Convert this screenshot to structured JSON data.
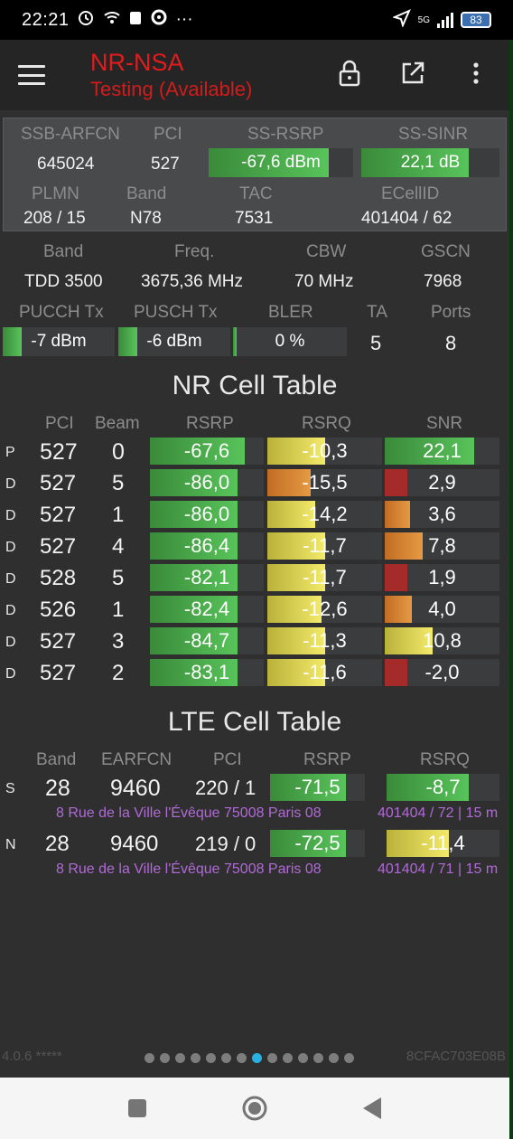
{
  "status_bar": {
    "time": "22:21",
    "network": "5G",
    "battery": "83"
  },
  "toolbar": {
    "title": "NR-NSA",
    "subtitle": "Testing (Available)"
  },
  "nr_box": {
    "labels": [
      "SSB-ARFCN",
      "PCI",
      "SS-RSRP",
      "SS-SINR"
    ],
    "arfcn": "645024",
    "pci": "527",
    "ss_rsrp": "-67,6 dBm",
    "ss_rsrp_fill": 0.83,
    "ss_sinr": "22,1 dB",
    "ss_sinr_fill": 0.78,
    "labels2": [
      "PLMN",
      "Band",
      "TAC",
      "ECellID"
    ],
    "plmn": "208 / 15",
    "band": "N78",
    "tac": "7531",
    "ecellid": "401404 / 62"
  },
  "carrier": {
    "labels": [
      "Band",
      "Freq.",
      "CBW",
      "GSCN"
    ],
    "band": "TDD 3500",
    "freq": "3675,36 MHz",
    "cbw": "70 MHz",
    "gscn": "7968",
    "labels2": [
      "PUCCH Tx",
      "PUSCH Tx",
      "BLER",
      "TA",
      "Ports"
    ],
    "pucch": "-7 dBm",
    "pucch_fill": 0.17,
    "pusch": "-6 dBm",
    "pusch_fill": 0.17,
    "bler": "0 %",
    "bler_fill": 0.03,
    "ta": "5",
    "ports": "8"
  },
  "nr_table": {
    "title": "NR Cell Table",
    "headers": [
      "PCI",
      "Beam",
      "RSRP",
      "RSRQ",
      "SNR"
    ],
    "rows": [
      {
        "type": "P",
        "pci": "527",
        "beam": "0",
        "rsrp": "-67,6",
        "rsrp_fill": 0.83,
        "rsrq": "-10,3",
        "rsrq_fill": 0.5,
        "rsrq_color": "yellow",
        "snr": "22,1",
        "snr_fill": 0.78,
        "snr_color": "green"
      },
      {
        "type": "D",
        "pci": "527",
        "beam": "5",
        "rsrp": "-86,0",
        "rsrp_fill": 0.77,
        "rsrq": "-15,5",
        "rsrq_fill": 0.38,
        "rsrq_color": "orange",
        "snr": "2,9",
        "snr_fill": 0.2,
        "snr_color": "red"
      },
      {
        "type": "D",
        "pci": "527",
        "beam": "1",
        "rsrp": "-86,0",
        "rsrp_fill": 0.77,
        "rsrq": "-14,2",
        "rsrq_fill": 0.42,
        "rsrq_color": "yellow",
        "snr": "3,6",
        "snr_fill": 0.22,
        "snr_color": "orange"
      },
      {
        "type": "D",
        "pci": "527",
        "beam": "4",
        "rsrp": "-86,4",
        "rsrp_fill": 0.77,
        "rsrq": "-11,7",
        "rsrq_fill": 0.5,
        "rsrq_color": "yellow",
        "snr": "7,8",
        "snr_fill": 0.33,
        "snr_color": "orange"
      },
      {
        "type": "D",
        "pci": "528",
        "beam": "5",
        "rsrp": "-82,1",
        "rsrp_fill": 0.77,
        "rsrq": "-11,7",
        "rsrq_fill": 0.5,
        "rsrq_color": "yellow",
        "snr": "1,9",
        "snr_fill": 0.2,
        "snr_color": "red"
      },
      {
        "type": "D",
        "pci": "526",
        "beam": "1",
        "rsrp": "-82,4",
        "rsrp_fill": 0.77,
        "rsrq": "-12,6",
        "rsrq_fill": 0.47,
        "rsrq_color": "yellow",
        "snr": "4,0",
        "snr_fill": 0.24,
        "snr_color": "orange"
      },
      {
        "type": "D",
        "pci": "527",
        "beam": "3",
        "rsrp": "-84,7",
        "rsrp_fill": 0.77,
        "rsrq": "-11,3",
        "rsrq_fill": 0.5,
        "rsrq_color": "yellow",
        "snr": "10,8",
        "snr_fill": 0.42,
        "snr_color": "yellow"
      },
      {
        "type": "D",
        "pci": "527",
        "beam": "2",
        "rsrp": "-83,1",
        "rsrp_fill": 0.77,
        "rsrq": "-11,6",
        "rsrq_fill": 0.5,
        "rsrq_color": "yellow",
        "snr": "-2,0",
        "snr_fill": 0.2,
        "snr_color": "red"
      }
    ]
  },
  "lte_table": {
    "title": "LTE Cell Table",
    "headers": [
      "Band",
      "EARFCN",
      "PCI",
      "RSRP",
      "RSRQ"
    ],
    "rows": [
      {
        "type": "S",
        "band": "28",
        "earfcn": "9460",
        "pci": "220 / 1",
        "rsrp": "-71,5",
        "rsrp_fill": 0.8,
        "rsrq": "-8,7",
        "rsrq_fill": 0.73,
        "rsrq_color": "green",
        "address": "8 Rue de la Ville l'Évêque 75008 Paris 08",
        "cell_info": "401404 / 72 | 15 m"
      },
      {
        "type": "N",
        "band": "28",
        "earfcn": "9460",
        "pci": "219 / 0",
        "rsrp": "-72,5",
        "rsrp_fill": 0.8,
        "rsrq": "-11,4",
        "rsrq_fill": 0.55,
        "rsrq_color": "yellow",
        "address": "8 Rue de la Ville l'Évêque 75008 Paris 08",
        "cell_info": "401404 / 71 | 15 m"
      }
    ]
  },
  "footer": {
    "version": "4.0.6 *****",
    "device_id": "8CFAC703E08B",
    "page_count": 14,
    "active_page": 7
  },
  "colors": {
    "title_red": "#e21c1c",
    "address_purple": "#b06ad6",
    "active_dot": "#26b0e4"
  }
}
